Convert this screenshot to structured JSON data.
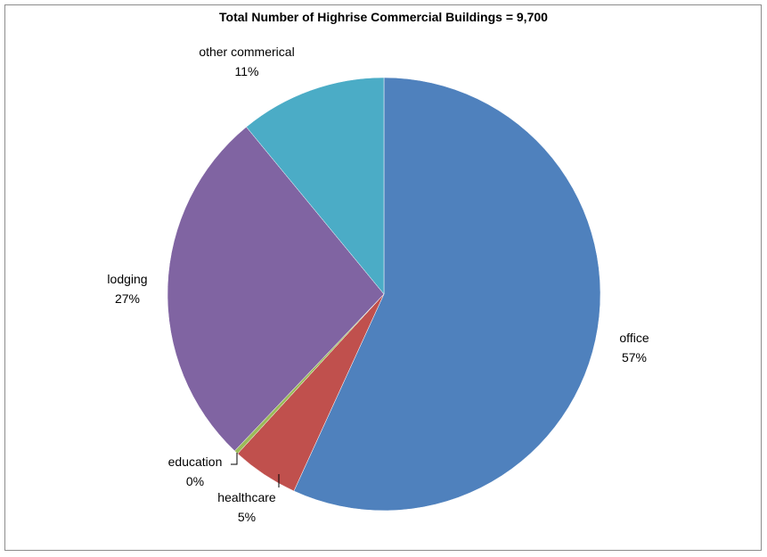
{
  "chart_data": {
    "type": "pie",
    "title": "Total Number of Highrise Commercial Buildings = 9,700",
    "slices": [
      {
        "label": "office",
        "value": 57,
        "display": "57%",
        "color": "#4F81BD"
      },
      {
        "label": "healthcare",
        "value": 5,
        "display": "5%",
        "color": "#C0504D"
      },
      {
        "label": "education",
        "value": 0.3,
        "display": "0%",
        "color": "#9BBB59"
      },
      {
        "label": "lodging",
        "value": 27,
        "display": "27%",
        "color": "#8064A2"
      },
      {
        "label": "other commerical",
        "value": 11,
        "display": "11%",
        "color": "#4BACC6"
      }
    ],
    "start": "12 o'clock",
    "direction": "clockwise",
    "legend": "none"
  }
}
